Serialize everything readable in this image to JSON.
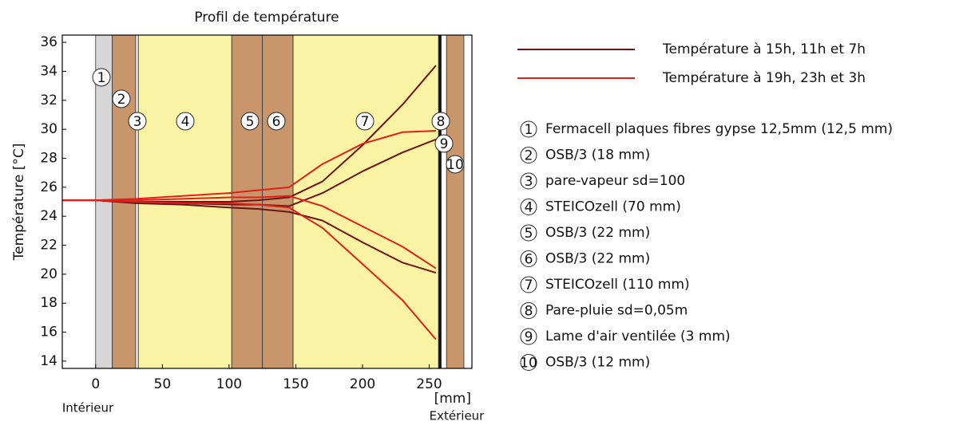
{
  "chart_data": {
    "type": "line",
    "title": "Profil de température",
    "y_label": "Température [°C]",
    "x_label": "[mm]",
    "annotations": [
      "Intérieur",
      "Extérieur"
    ],
    "xlim": [
      -25,
      282
    ],
    "ylim": [
      13.5,
      36.5
    ],
    "xticks": [
      0,
      50,
      100,
      150,
      200,
      250
    ],
    "yticks": [
      14,
      16,
      18,
      20,
      22,
      24,
      26,
      28,
      30,
      32,
      34,
      36
    ],
    "x": [
      -25,
      0,
      30,
      65,
      100,
      122,
      145,
      170,
      200,
      230,
      255
    ],
    "series": [
      {
        "name": "Température à 15h, 11h et 7h",
        "color": "#6e1414",
        "values": [
          [
            25.1,
            25.1,
            25.0,
            25.0,
            25.0,
            25.1,
            25.3,
            26.4,
            28.9,
            31.7,
            34.4
          ],
          [
            25.1,
            25.1,
            25.0,
            24.9,
            24.8,
            24.8,
            24.7,
            25.6,
            27.1,
            28.4,
            29.3
          ],
          [
            25.1,
            25.1,
            24.9,
            24.8,
            24.6,
            24.5,
            24.3,
            23.7,
            22.2,
            20.8,
            20.1
          ]
        ]
      },
      {
        "name": "Température à 19h, 23h et 3h",
        "color": "#e0201a",
        "values": [
          [
            25.1,
            25.1,
            25.2,
            25.4,
            25.6,
            25.8,
            26.0,
            27.6,
            29.0,
            29.8,
            29.9
          ],
          [
            25.1,
            25.1,
            25.1,
            25.2,
            25.3,
            25.3,
            25.4,
            24.7,
            23.3,
            21.9,
            20.4
          ],
          [
            25.1,
            25.1,
            25.0,
            24.9,
            24.9,
            24.8,
            24.6,
            23.2,
            20.7,
            18.2,
            15.5
          ]
        ]
      }
    ],
    "layers": [
      {
        "number": "1",
        "label": "Fermacell plaques fibres gypse 12,5mm (12,5 mm)",
        "from": 0,
        "to": 12.5,
        "color": "#d6d6d6"
      },
      {
        "number": "2",
        "label": "OSB/3 (18 mm)",
        "from": 12.5,
        "to": 30,
        "color": "#c9966c"
      },
      {
        "number": "3",
        "label": "pare-vapeur sd=100",
        "from": 30,
        "to": 32,
        "color": "#f4f4f4"
      },
      {
        "number": "4",
        "label": "STEICOzell (70 mm)",
        "from": 32,
        "to": 102,
        "color": "#fbf3a4"
      },
      {
        "number": "5",
        "label": "OSB/3 (22 mm)",
        "from": 102,
        "to": 125,
        "color": "#c9966c"
      },
      {
        "number": "6",
        "label": "OSB/3 (22 mm)",
        "from": 125,
        "to": 148,
        "color": "#c9966c"
      },
      {
        "number": "7",
        "label": "STEICOzell (110 mm)",
        "from": 148,
        "to": 257,
        "color": "#fbf3a4"
      },
      {
        "number": "8",
        "label": "Pare-pluie sd=0,05m",
        "from": 257,
        "to": 259,
        "color": "#111111"
      },
      {
        "number": "9",
        "label": "Lame d'air ventilée (3 mm)",
        "from": 259,
        "to": 263,
        "color": "#ffffff"
      },
      {
        "number": "10",
        "label": "OSB/3 (12 mm)",
        "from": 263,
        "to": 276,
        "color": "#c9966c"
      }
    ]
  }
}
